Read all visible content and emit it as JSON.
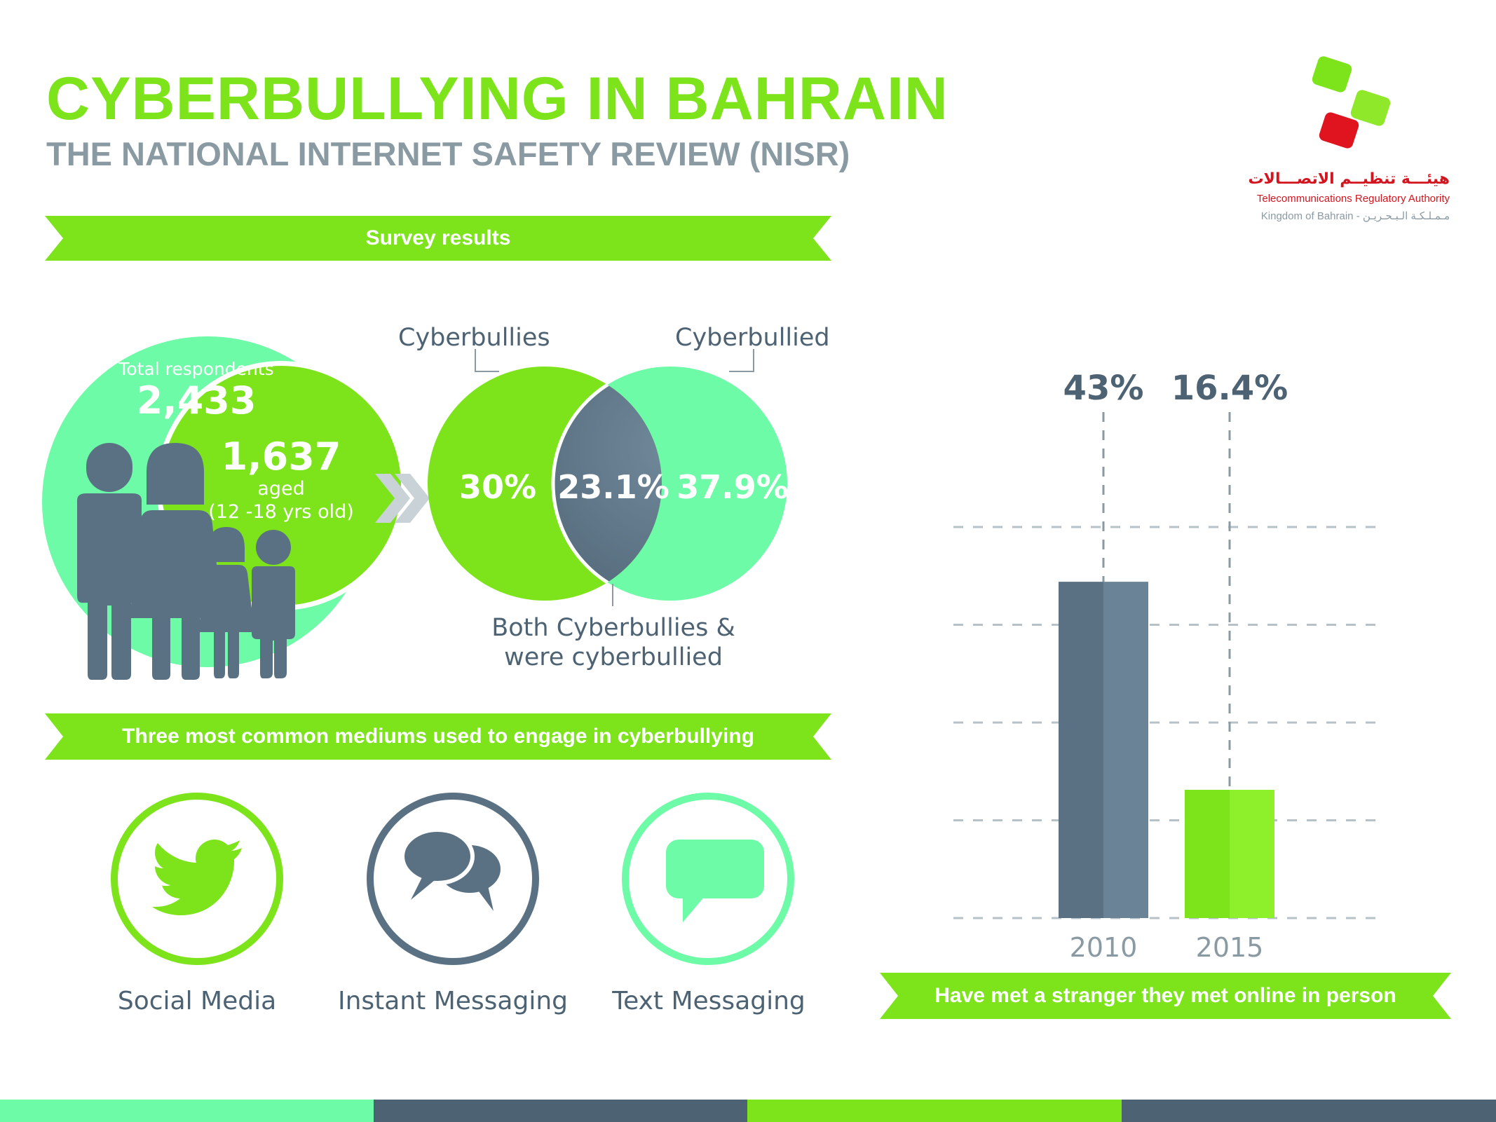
{
  "header": {
    "title": "CYBERBULLYING IN BAHRAIN",
    "subtitle": "THE NATIONAL INTERNET SAFETY REVIEW (NISR)"
  },
  "logo": {
    "arabic_name": "هيئـــة تنظيــم الاتصـــالات",
    "english_name": "Telecommunications Regulatory Authority",
    "location": "Kingdom of Bahrain - مـمـلـكـة الـبـحـريـن"
  },
  "sections": {
    "survey": "Survey results",
    "mediums": "Three most common mediums used to engage in cyberbullying",
    "stranger": "Have met a stranger they met online in person"
  },
  "respondents": {
    "total_label": "Total respondents",
    "total_value": "2,433",
    "aged_value": "1,637",
    "aged_label": "aged",
    "aged_range": "(12 -18 yrs old)"
  },
  "venn": {
    "left_label": "Cyberbullies",
    "right_label": "Cyberbullied",
    "left_value": "30%",
    "center_value": "23.1%",
    "right_value": "37.9%",
    "bottom_label_line1": "Both Cyberbullies &",
    "bottom_label_line2": "were cyberbullied"
  },
  "mediums": [
    {
      "label": "Social Media",
      "icon": "twitter-bird-icon"
    },
    {
      "label": "Instant Messaging",
      "icon": "chat-bubbles-icon"
    },
    {
      "label": "Text Messaging",
      "icon": "speech-bubble-icon"
    }
  ],
  "chart_data": {
    "type": "bar",
    "categories": [
      "2010",
      "2015"
    ],
    "values": [
      43,
      16.4
    ],
    "value_labels": [
      "43%",
      "16.4%"
    ],
    "ylim": [
      0,
      50
    ],
    "grid": true
  },
  "colors": {
    "green": "#7de31a",
    "mint": "#6dfba8",
    "slate": "#5a7184",
    "gray_text": "#8a9aa2"
  }
}
